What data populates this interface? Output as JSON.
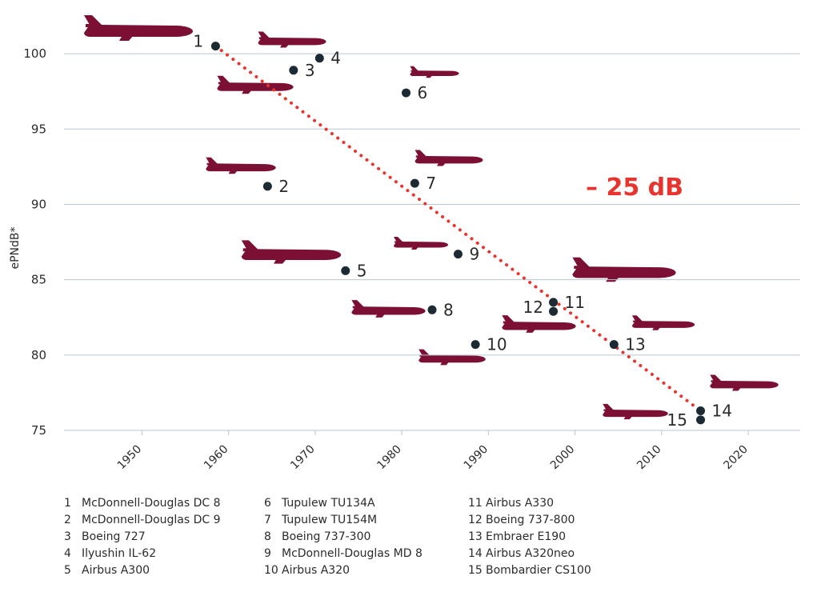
{
  "colors": {
    "plane": "#7b1034",
    "point": "#1b2a33",
    "trend": "#e8342e",
    "grid": "#b9c6d3",
    "text": "#2b2b2b"
  },
  "chart_data": {
    "type": "scatter",
    "ylabel": "ePNdB*",
    "xlabel": "",
    "xlim": [
      1941,
      2026
    ],
    "ylim": [
      75,
      102.5
    ],
    "xticks": [
      1950,
      1960,
      1970,
      1980,
      1990,
      2000,
      2010,
      2020
    ],
    "yticks": [
      75,
      80,
      85,
      90,
      95,
      100
    ],
    "grid": true,
    "annotation": "– 25 dB",
    "trend_line": {
      "x": [
        1958.5,
        2014.5
      ],
      "y": [
        100.5,
        76.3
      ]
    },
    "points": [
      {
        "id": "1",
        "name": "McDonnell-Douglas DC 8",
        "x": 1958.5,
        "y": 100.5
      },
      {
        "id": "2",
        "name": "McDonnell-Douglas DC 9",
        "x": 1964.5,
        "y": 91.2
      },
      {
        "id": "3",
        "name": "Boeing 727",
        "x": 1967.5,
        "y": 98.9
      },
      {
        "id": "4",
        "name": "Ilyushin IL-62",
        "x": 1970.5,
        "y": 99.7
      },
      {
        "id": "5",
        "name": "Airbus A300",
        "x": 1973.5,
        "y": 85.6
      },
      {
        "id": "6",
        "name": "Tupulew TU134A",
        "x": 1980.5,
        "y": 97.4
      },
      {
        "id": "7",
        "name": "Tupulew TU154M",
        "x": 1981.5,
        "y": 91.4
      },
      {
        "id": "8",
        "name": "Boeing 737-300",
        "x": 1983.5,
        "y": 83.0
      },
      {
        "id": "9",
        "name": "McDonnell-Douglas MD 8",
        "x": 1986.5,
        "y": 86.7
      },
      {
        "id": "10",
        "name": "Airbus A320",
        "x": 1988.5,
        "y": 80.7
      },
      {
        "id": "11",
        "name": "Airbus A330",
        "x": 1997.5,
        "y": 83.5
      },
      {
        "id": "12",
        "name": "Boeing 737-800",
        "x": 1997.5,
        "y": 82.9
      },
      {
        "id": "13",
        "name": "Embraer E190",
        "x": 2004.5,
        "y": 80.7
      },
      {
        "id": "14",
        "name": "Airbus A320neo",
        "x": 2014.5,
        "y": 76.3
      },
      {
        "id": "15",
        "name": "Bombardier CS100",
        "x": 2014.5,
        "y": 75.7
      }
    ]
  }
}
